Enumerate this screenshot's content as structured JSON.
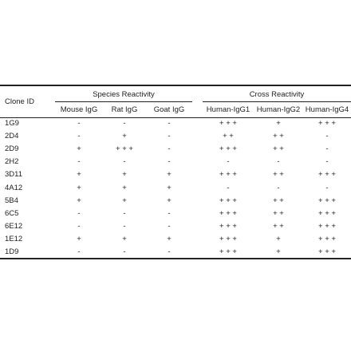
{
  "table": {
    "col_id_header": "Clone ID",
    "group_species": "Species Reactivity",
    "group_cross": "Cross Reactivity",
    "columns": [
      "Mouse IgG",
      "Rat IgG",
      "Goat IgG",
      "Human-IgG1",
      "Human-IgG2",
      "Human-IgG4"
    ],
    "rows": [
      {
        "id": "1G9",
        "values": [
          "-",
          "-",
          "-",
          "+ + +",
          "+",
          "+ + +"
        ]
      },
      {
        "id": "2D4",
        "values": [
          "-",
          "+",
          "-",
          "+ +",
          "+ +",
          "-"
        ]
      },
      {
        "id": "2D9",
        "values": [
          "+",
          "+ + +",
          "-",
          "+ + +",
          "+ +",
          "-"
        ]
      },
      {
        "id": "2H2",
        "values": [
          "-",
          "-",
          "-",
          "-",
          "-",
          "-"
        ]
      },
      {
        "id": "3D11",
        "values": [
          "+",
          "+",
          "+",
          "+ + +",
          "+ +",
          "+ + +"
        ]
      },
      {
        "id": "4A12",
        "values": [
          "+",
          "+",
          "+",
          "-",
          "-",
          "-"
        ]
      },
      {
        "id": "5B4",
        "values": [
          "+",
          "+",
          "+",
          "+ + +",
          "+ +",
          "+ + +"
        ]
      },
      {
        "id": "6C5",
        "values": [
          "-",
          "-",
          "-",
          "+ + +",
          "+ +",
          "+ + +"
        ]
      },
      {
        "id": "6E12",
        "values": [
          "-",
          "-",
          "-",
          "+ + +",
          "+ +",
          "+ + +"
        ]
      },
      {
        "id": "1E12",
        "values": [
          "+",
          "+",
          "+",
          "+ + +",
          "+",
          "+ + +"
        ]
      },
      {
        "id": "1D9",
        "values": [
          "-",
          "-",
          "-",
          "+ + +",
          "+",
          "+ + +"
        ]
      }
    ]
  }
}
